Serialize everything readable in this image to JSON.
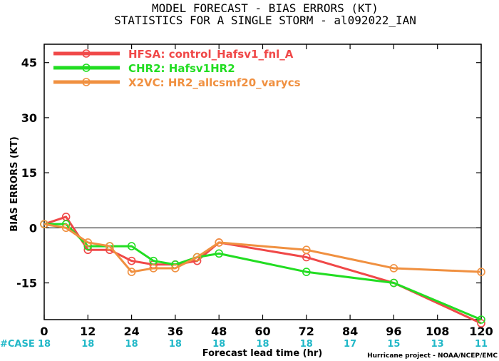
{
  "chart_data": {
    "type": "line",
    "title": "MODEL FORECAST - BIAS ERRORS (KT)",
    "subtitle": "STATISTICS FOR A SINGLE STORM - al092022_IAN",
    "xlabel": "Forecast lead time (hr)",
    "ylabel": "BIAS ERRORS (KT)",
    "xlim": [
      0,
      120
    ],
    "ylim": [
      -25,
      50
    ],
    "xticks": [
      0,
      12,
      24,
      36,
      48,
      60,
      72,
      84,
      96,
      108,
      120
    ],
    "yticks": [
      -15,
      0,
      15,
      30,
      45
    ],
    "zero_line": true,
    "legend_position": "top-left",
    "case_label": "#CASE",
    "case_ticks": [
      0,
      12,
      24,
      36,
      48,
      60,
      72,
      84,
      96,
      108,
      120
    ],
    "case_counts": [
      "18",
      "18",
      "18",
      "18",
      "18",
      "18",
      "18",
      "17",
      "15",
      "13",
      "11"
    ],
    "case_color": "#22b8c8",
    "credit": "Hurricane project - NOAA/NCEP/EMC",
    "series": [
      {
        "name": "HFSA: control_Hafsv1_fnl_A",
        "color": "#f04848",
        "x": [
          0,
          6,
          12,
          18,
          24,
          30,
          36,
          42,
          48,
          72,
          96,
          120
        ],
        "values": [
          1,
          3,
          -6,
          -6,
          -9,
          -10,
          -10,
          -9,
          -4,
          -8,
          -15,
          -26
        ]
      },
      {
        "name": "CHR2: Hafsv1HR2",
        "color": "#22dd22",
        "x": [
          0,
          6,
          12,
          18,
          24,
          30,
          36,
          42,
          48,
          72,
          96,
          120
        ],
        "values": [
          1,
          1,
          -5,
          -5,
          -5,
          -9,
          -10,
          -8,
          -7,
          -12,
          -15,
          -25
        ]
      },
      {
        "name": "X2VC: HR2_allcsmf20_varycs",
        "color": "#f09040",
        "x": [
          0,
          6,
          12,
          18,
          24,
          30,
          36,
          42,
          48,
          72,
          96,
          120
        ],
        "values": [
          1,
          0,
          -4,
          -5,
          -12,
          -11,
          -11,
          -8,
          -4,
          -6,
          -11,
          -12
        ]
      }
    ]
  }
}
